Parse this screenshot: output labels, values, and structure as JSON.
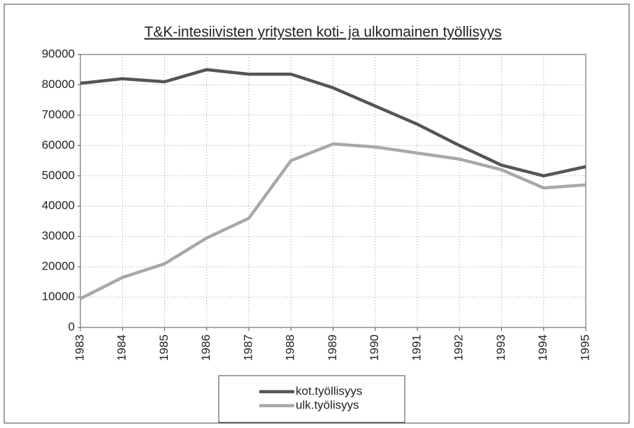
{
  "chart_data": {
    "type": "line",
    "title": "T&K-intesiivisten yritysten koti- ja ulkomainen työllisyys",
    "categories": [
      "1983",
      "1984",
      "1985",
      "1986",
      "1987",
      "1988",
      "1989",
      "1990",
      "1991",
      "1992",
      "1993",
      "1994",
      "1995"
    ],
    "series": [
      {
        "name": "kot.työllisyys",
        "color": "#555555",
        "values": [
          80500,
          82000,
          81000,
          85000,
          83500,
          83500,
          79000,
          73000,
          67000,
          60000,
          53500,
          50000,
          53000
        ]
      },
      {
        "name": "ulk.työlisyys",
        "color": "#a8a8a8",
        "values": [
          9500,
          16500,
          21000,
          29500,
          36000,
          55000,
          60500,
          59500,
          57500,
          55500,
          52000,
          46000,
          47000
        ]
      }
    ],
    "ylim": [
      0,
      90000
    ],
    "yticks": [
      0,
      10000,
      20000,
      30000,
      40000,
      50000,
      60000,
      70000,
      80000,
      90000
    ],
    "grid": true,
    "legend": "bottom"
  }
}
